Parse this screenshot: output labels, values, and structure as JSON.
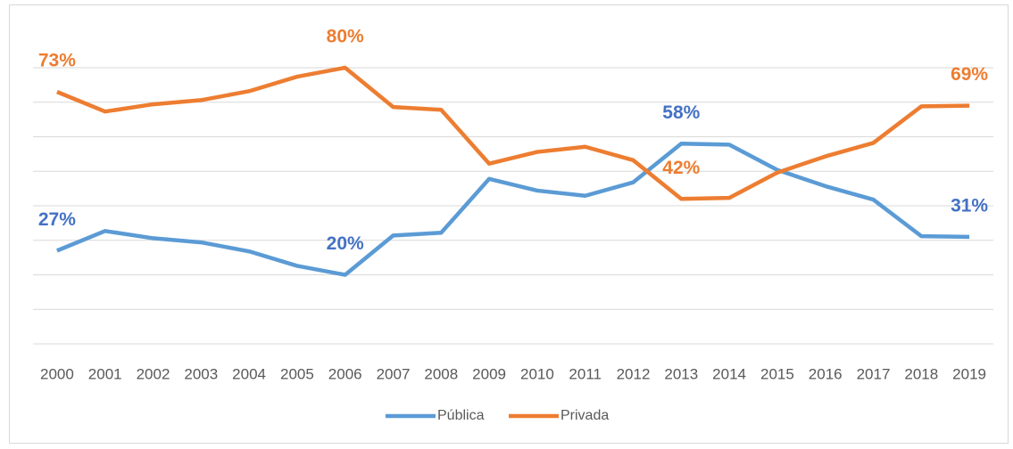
{
  "chart_data": {
    "type": "line",
    "categories": [
      "2000",
      "2001",
      "2002",
      "2003",
      "2004",
      "2005",
      "2006",
      "2007",
      "2008",
      "2009",
      "2010",
      "2011",
      "2012",
      "2013",
      "2014",
      "2015",
      "2016",
      "2017",
      "2018",
      "2019"
    ],
    "series": [
      {
        "name": "Pública",
        "color": "#5b9bd5",
        "label_color": "#4472c4",
        "values": [
          27,
          32.7,
          30.6,
          29.4,
          26.8,
          22.6,
          20,
          31.4,
          32.2,
          47.8,
          44.4,
          42.9,
          46.8,
          58,
          57.7,
          50.4,
          45.7,
          41.8,
          31.2,
          31
        ],
        "value_labels": [
          "27%",
          null,
          null,
          null,
          null,
          null,
          "20%",
          null,
          null,
          null,
          null,
          null,
          null,
          "58%",
          null,
          null,
          null,
          null,
          null,
          "31%"
        ]
      },
      {
        "name": "Privada",
        "color": "#ed7d31",
        "label_color": "#ed7d31",
        "values": [
          73,
          67.3,
          69.4,
          70.6,
          73.2,
          77.4,
          80,
          68.6,
          67.8,
          52.2,
          55.6,
          57.1,
          53.2,
          42,
          42.3,
          49.6,
          54.3,
          58.2,
          68.8,
          69
        ],
        "value_labels": [
          "73%",
          null,
          null,
          null,
          null,
          null,
          "80%",
          null,
          null,
          null,
          null,
          null,
          null,
          "42%",
          null,
          null,
          null,
          null,
          null,
          "69%"
        ]
      }
    ],
    "ylim": [
      0,
      80
    ],
    "yticks": [
      0,
      10,
      20,
      30,
      40,
      50,
      60,
      70,
      80
    ],
    "grid": true,
    "legend": "bottom"
  }
}
